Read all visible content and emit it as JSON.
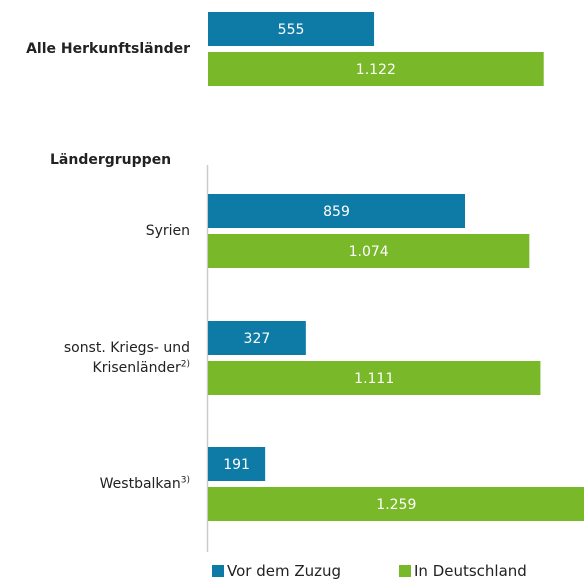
{
  "chart_data": {
    "type": "hbar",
    "categories": [
      "Alle Herkunftsländer",
      "Syrien",
      "sonst. Kriegs- und Krisenländer",
      "Westbalkan"
    ],
    "category_notes": [
      null,
      null,
      "2)",
      "3)"
    ],
    "group_label": "Ländergruppen",
    "series": [
      {
        "name": "Vor dem Zuzug",
        "color": "#0e7ba6",
        "values": [
          555,
          859,
          327,
          191
        ],
        "value_labels": [
          "555",
          "859",
          "327",
          "191"
        ]
      },
      {
        "name": "In Deutschland",
        "color": "#78b829",
        "values": [
          1122,
          1074,
          1111,
          1259
        ],
        "value_labels": [
          "1.122",
          "1.074",
          "1.111",
          "1.259"
        ]
      }
    ],
    "xlim": [
      0,
      1260
    ]
  }
}
